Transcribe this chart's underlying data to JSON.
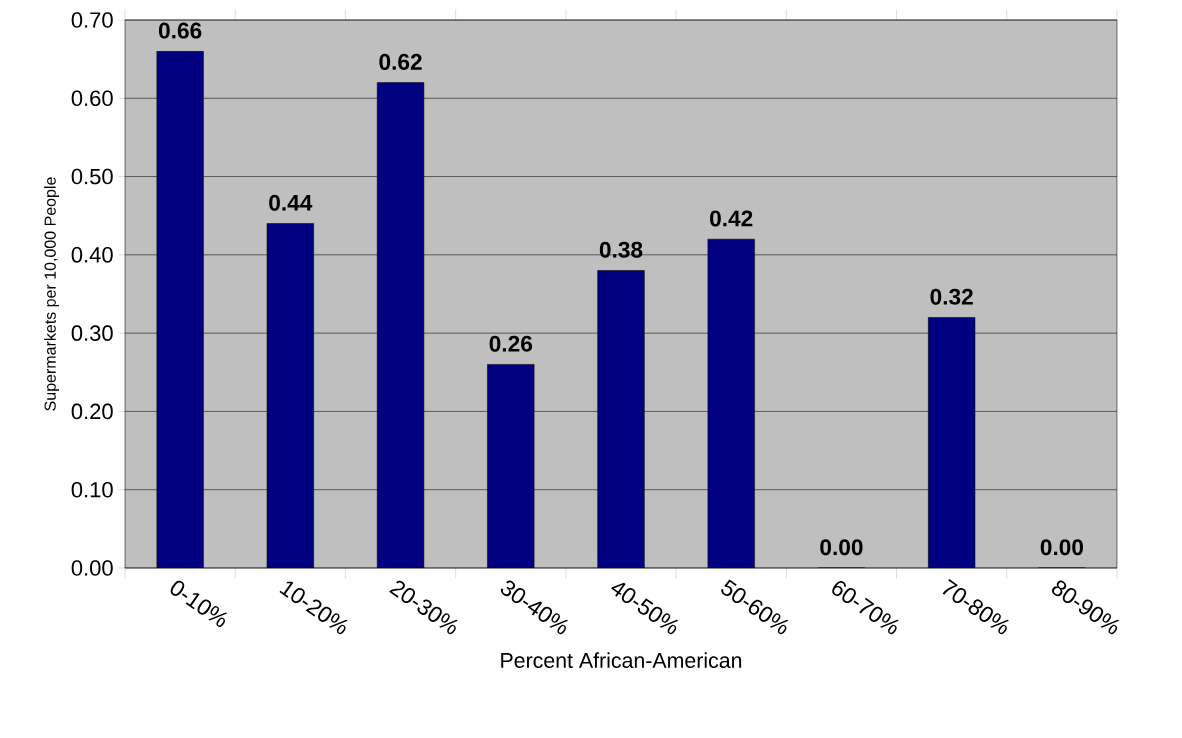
{
  "chart_data": {
    "type": "bar",
    "xlabel": "Percent African-American",
    "ylabel": "Supermarkets per 10,000 People",
    "categories": [
      "0-10%",
      "10-20%",
      "20-30%",
      "30-40%",
      "40-50%",
      "50-60%",
      "60-70%",
      "70-80%",
      "80-90%"
    ],
    "values": [
      0.66,
      0.44,
      0.62,
      0.26,
      0.38,
      0.42,
      0.0,
      0.32,
      0.0
    ],
    "value_labels": [
      "0.66",
      "0.44",
      "0.62",
      "0.26",
      "0.38",
      "0.42",
      "0.00",
      "0.32",
      "0.00"
    ],
    "color": "#000080",
    "ylim": [
      0,
      0.7
    ],
    "yticks": [
      {
        "value": 0,
        "label": "0.00"
      },
      {
        "value": 0.1,
        "label": "0.10"
      },
      {
        "value": 0.2,
        "label": "0.20"
      },
      {
        "value": 0.3,
        "label": "0.30"
      },
      {
        "value": 0.4,
        "label": "0.40"
      },
      {
        "value": 0.5,
        "label": "0.50"
      },
      {
        "value": 0.6,
        "label": "0.60"
      },
      {
        "value": 0.7,
        "label": "0.70"
      }
    ],
    "grid": "y"
  }
}
